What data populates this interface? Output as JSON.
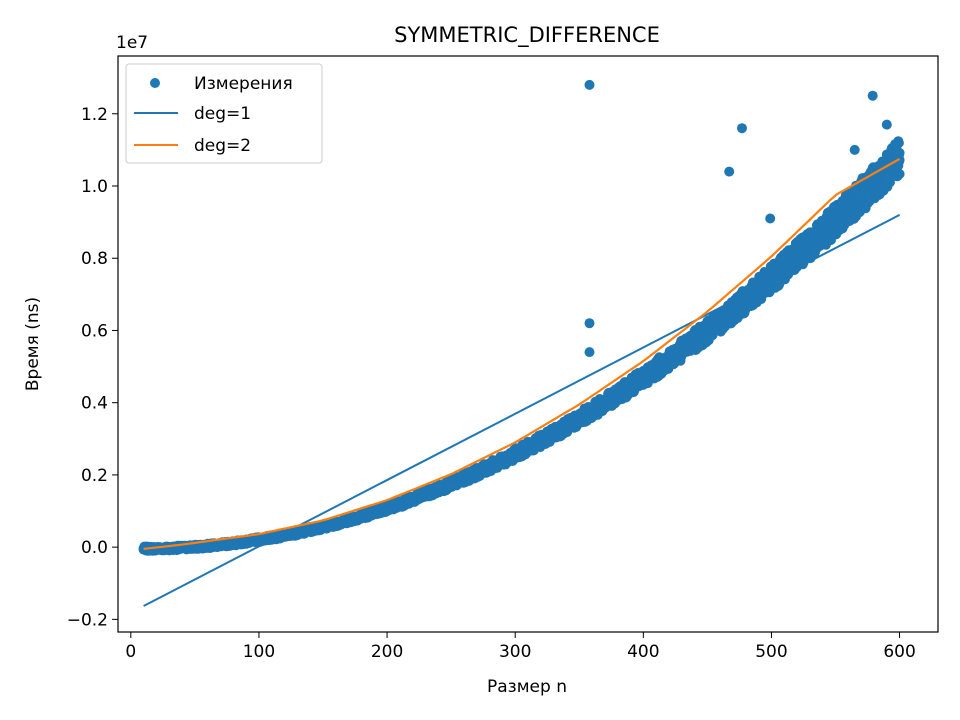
{
  "chart_data": {
    "type": "scatter",
    "title": "SYMMETRIC_DIFFERENCE",
    "xlabel": "Размер n",
    "ylabel": "Время (ns)",
    "y_offset_label": "1e7",
    "xlim": [
      -10,
      630
    ],
    "ylim": [
      -0.235,
      1.36
    ],
    "x_ticks": [
      0,
      100,
      200,
      300,
      400,
      500,
      600
    ],
    "x_tick_labels": [
      "0",
      "100",
      "200",
      "300",
      "400",
      "500",
      "600"
    ],
    "y_ticks": [
      -0.2,
      0.0,
      0.2,
      0.4,
      0.6,
      0.8,
      1.0,
      1.2
    ],
    "y_tick_labels": [
      "−0.2",
      "0.0",
      "0.2",
      "0.4",
      "0.6",
      "0.8",
      "1.0",
      "1.2"
    ],
    "grid": false,
    "legend_position": "top-left",
    "legend": [
      "Измерения",
      "deg=1",
      "deg=2"
    ],
    "colors": {
      "measurements": "#1f77b4",
      "deg1": "#1f77b4",
      "deg2": "#ff7f0e"
    },
    "series": [
      {
        "name": "Измерения",
        "type": "scatter",
        "trend": "quadratic",
        "x_range": [
          10,
          600
        ],
        "y_trend_start": -0.005,
        "y_trend_end": 1.075,
        "outliers": [
          {
            "x": 358,
            "y": 1.28
          },
          {
            "x": 358,
            "y": 0.62
          },
          {
            "x": 358,
            "y": 0.54
          },
          {
            "x": 467,
            "y": 1.04
          },
          {
            "x": 477,
            "y": 1.16
          },
          {
            "x": 579,
            "y": 1.25
          },
          {
            "x": 590,
            "y": 1.17
          },
          {
            "x": 499,
            "y": 0.91
          },
          {
            "x": 565,
            "y": 1.1
          }
        ]
      },
      {
        "name": "deg=1",
        "type": "line",
        "x": [
          10,
          600
        ],
        "y": [
          -0.163,
          0.92
        ]
      },
      {
        "name": "deg=2",
        "type": "line",
        "x": [
          10,
          40,
          100,
          150,
          200,
          250,
          300,
          350,
          400,
          450,
          500,
          550,
          600
        ],
        "y": [
          -0.005,
          0.007,
          0.036,
          0.074,
          0.13,
          0.202,
          0.29,
          0.395,
          0.515,
          0.652,
          0.805,
          0.975,
          1.075
        ]
      }
    ]
  }
}
